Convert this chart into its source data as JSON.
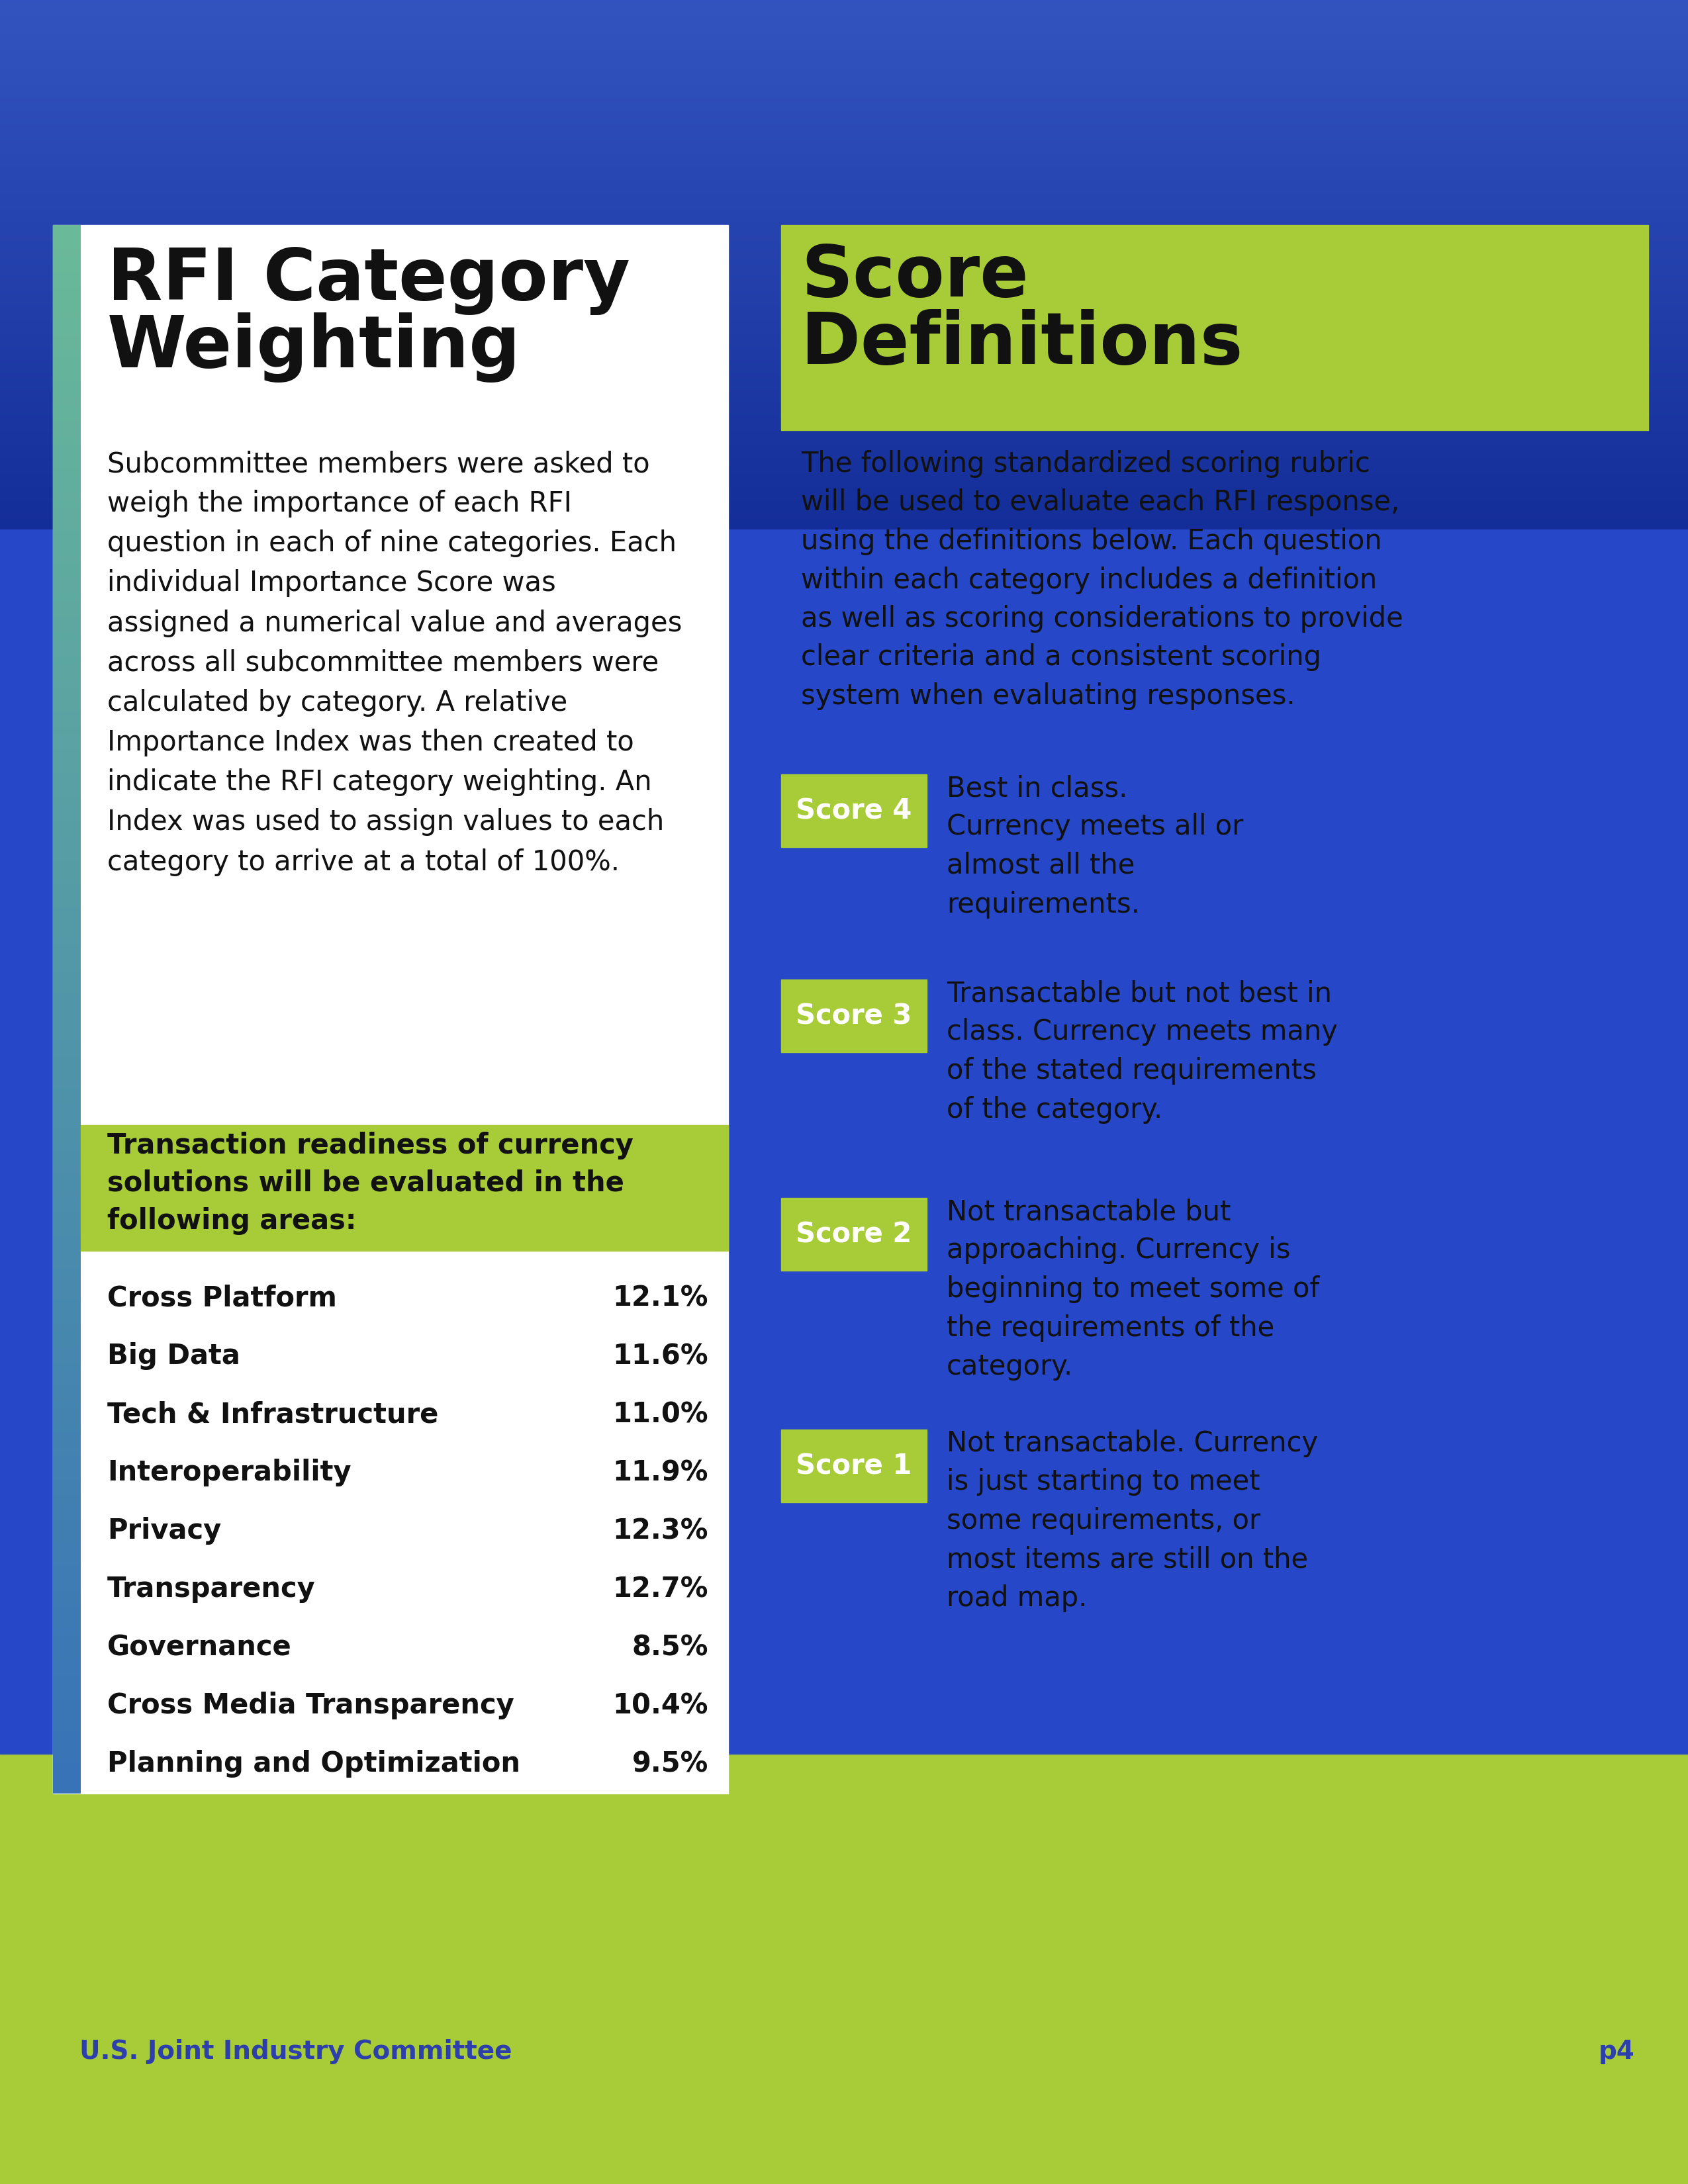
{
  "title_left": "RFI Category\nWeighting",
  "title_right": "Score\nDefinitions",
  "left_body": "Subcommittee members were asked to\nweigh the importance of each RFI\nquestion in each of nine categories. Each\nindividual Importance Score was\nassigned a numerical value and averages\nacross all subcommittee members were\ncalculated by category. A relative\nImportance Index was then created to\nindicate the RFI category weighting. An\nIndex was used to assign values to each\ncategory to arrive at a total of 100%.",
  "green_box_text": "Transaction readiness of currency\nsolutions will be evaluated in the\nfollowing areas:",
  "categories": [
    [
      "Cross Platform",
      "12.1%"
    ],
    [
      "Big Data",
      "11.6%"
    ],
    [
      "Tech & Infrastructure",
      "11.0%"
    ],
    [
      "Interoperability",
      "11.9%"
    ],
    [
      "Privacy",
      "12.3%"
    ],
    [
      "Transparency",
      "12.7%"
    ],
    [
      "Governance",
      "8.5%"
    ],
    [
      "Cross Media Transparency",
      "10.4%"
    ],
    [
      "Planning and Optimization",
      "9.5%"
    ]
  ],
  "right_intro": "The following standardized scoring rubric\nwill be used to evaluate each RFI response,\nusing the definitions below. Each question\nwithin each category includes a definition\nas well as scoring considerations to provide\nclear criteria and a consistent scoring\nsystem when evaluating responses.",
  "scores": [
    {
      "label": "Score 4",
      "text": "Best in class.\nCurrency meets all or\nalmost all the\nrequirements."
    },
    {
      "label": "Score 3",
      "text": "Transactable but not best in\nclass. Currency meets many\nof the stated requirements\nof the category."
    },
    {
      "label": "Score 2",
      "text": "Not transactable but\napproaching. Currency is\nbeginning to meet some of\nthe requirements of the\ncategory."
    },
    {
      "label": "Score 1",
      "text": "Not transactable. Currency\nis just starting to meet\nsome requirements, or\nmost items are still on the\nroad map."
    }
  ],
  "footer_left": "U.S. Joint Industry Committee",
  "footer_right": "p4",
  "green_color": "#a8cc38",
  "blue_dark": "#1a2fa0",
  "blue_mid": "#2547c8",
  "blue_light": "#3060d0",
  "dark_text": "#111111",
  "footer_text_color": "#2c3faa",
  "white": "#ffffff"
}
